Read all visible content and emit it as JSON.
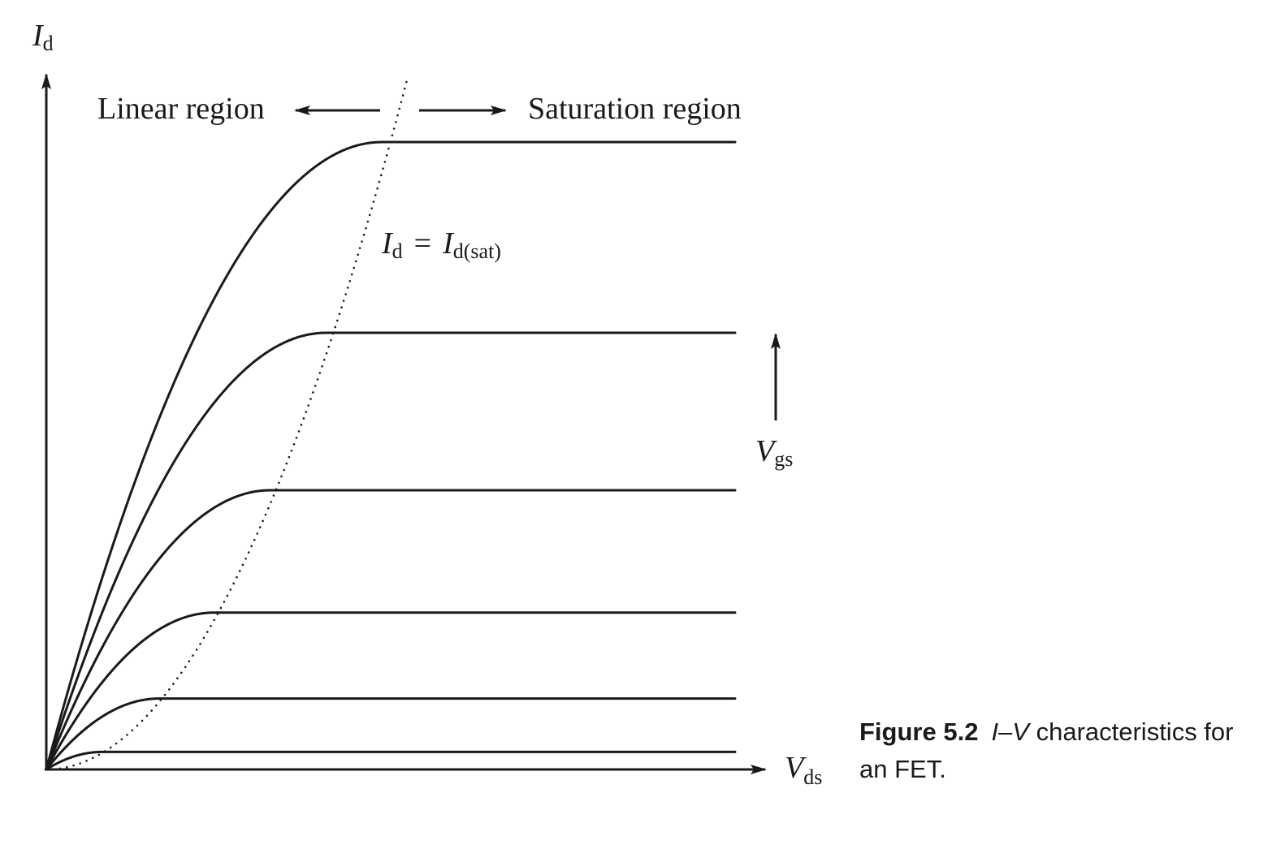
{
  "diagram": {
    "y_axis": {
      "symbol": "I",
      "subscript": "d"
    },
    "x_axis": {
      "symbol": "V",
      "subscript": "ds"
    },
    "region_labels": {
      "linear": "Linear region",
      "saturation": "Saturation region"
    },
    "saturation_boundary_label": {
      "left_symbol": "I",
      "left_subscript": "d",
      "equals": "=",
      "right_symbol": "I",
      "right_subscript": "d(sat)"
    },
    "vgs_label": {
      "symbol": "V",
      "subscript": "gs"
    },
    "caption": {
      "number": "Figure 5.2",
      "italic_part": "I–V",
      "line1_rest": " characteristics for",
      "line2": "an FET."
    }
  },
  "chart_data": {
    "type": "line",
    "xlabel": "Vds",
    "ylabel": "Id",
    "grid": false,
    "curves_saturation_current_fraction": [
      0.028,
      0.113,
      0.25,
      0.445,
      0.696,
      1.0
    ],
    "saturation_boundary": "Id = Id(sat)"
  }
}
